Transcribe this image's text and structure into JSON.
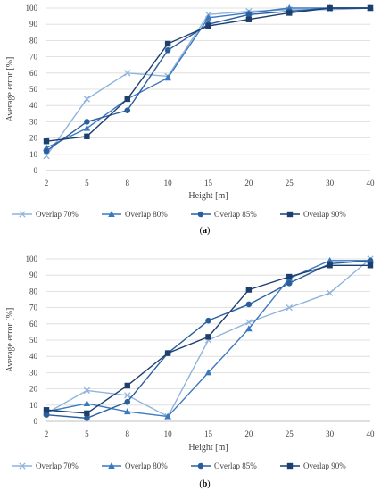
{
  "chart_data": [
    {
      "type": "line",
      "caption": "(a)",
      "xlabel": "Height [m]",
      "ylabel": "Average error [%]",
      "categories": [
        "2",
        "5",
        "8",
        "10",
        "15",
        "20",
        "25",
        "30",
        "40"
      ],
      "ylim": [
        0,
        100
      ],
      "yticks": [
        "0",
        "10",
        "20",
        "30",
        "40",
        "50",
        "60",
        "70",
        "80",
        "90",
        "100"
      ],
      "grid": "horizontal",
      "legend_position": "bottom",
      "series": [
        {
          "name": "Overlap 70%",
          "marker": "x",
          "color": "#8fb3dc",
          "values": [
            9,
            44,
            60,
            58,
            96,
            98,
            99,
            99,
            100
          ]
        },
        {
          "name": "Overlap 80%",
          "marker": "triangle",
          "color": "#3c78c0",
          "values": [
            14,
            26,
            44,
            57,
            94,
            97,
            100,
            100,
            100
          ]
        },
        {
          "name": "Overlap 85%",
          "marker": "circle",
          "color": "#2a5f9e",
          "values": [
            12,
            30,
            37,
            74,
            90,
            96,
            98,
            100,
            100
          ]
        },
        {
          "name": "Overlap 90%",
          "marker": "square",
          "color": "#1c3f6e",
          "values": [
            18,
            21,
            44,
            78,
            89,
            93,
            97,
            100,
            100
          ]
        }
      ]
    },
    {
      "type": "line",
      "caption": "(b)",
      "xlabel": "Height [m]",
      "ylabel": "Average error [%]",
      "categories": [
        "2",
        "5",
        "8",
        "10",
        "15",
        "20",
        "25",
        "30",
        "40"
      ],
      "ylim": [
        0,
        100
      ],
      "yticks": [
        "0",
        "10",
        "20",
        "30",
        "40",
        "50",
        "60",
        "70",
        "80",
        "90",
        "100"
      ],
      "grid": "horizontal",
      "legend_position": "bottom",
      "series": [
        {
          "name": "Overlap 70%",
          "marker": "x",
          "color": "#8fb3dc",
          "values": [
            5,
            19,
            16,
            3,
            50,
            61,
            70,
            79,
            100
          ]
        },
        {
          "name": "Overlap 80%",
          "marker": "triangle",
          "color": "#3c78c0",
          "values": [
            6,
            11,
            6,
            3,
            30,
            57,
            88,
            99,
            99
          ]
        },
        {
          "name": "Overlap 85%",
          "marker": "circle",
          "color": "#2a5f9e",
          "values": [
            4,
            2,
            12,
            42,
            62,
            72,
            85,
            97,
            99
          ]
        },
        {
          "name": "Overlap 90%",
          "marker": "square",
          "color": "#1c3f6e",
          "values": [
            7,
            5,
            22,
            42,
            52,
            81,
            89,
            96,
            96
          ]
        }
      ]
    }
  ]
}
